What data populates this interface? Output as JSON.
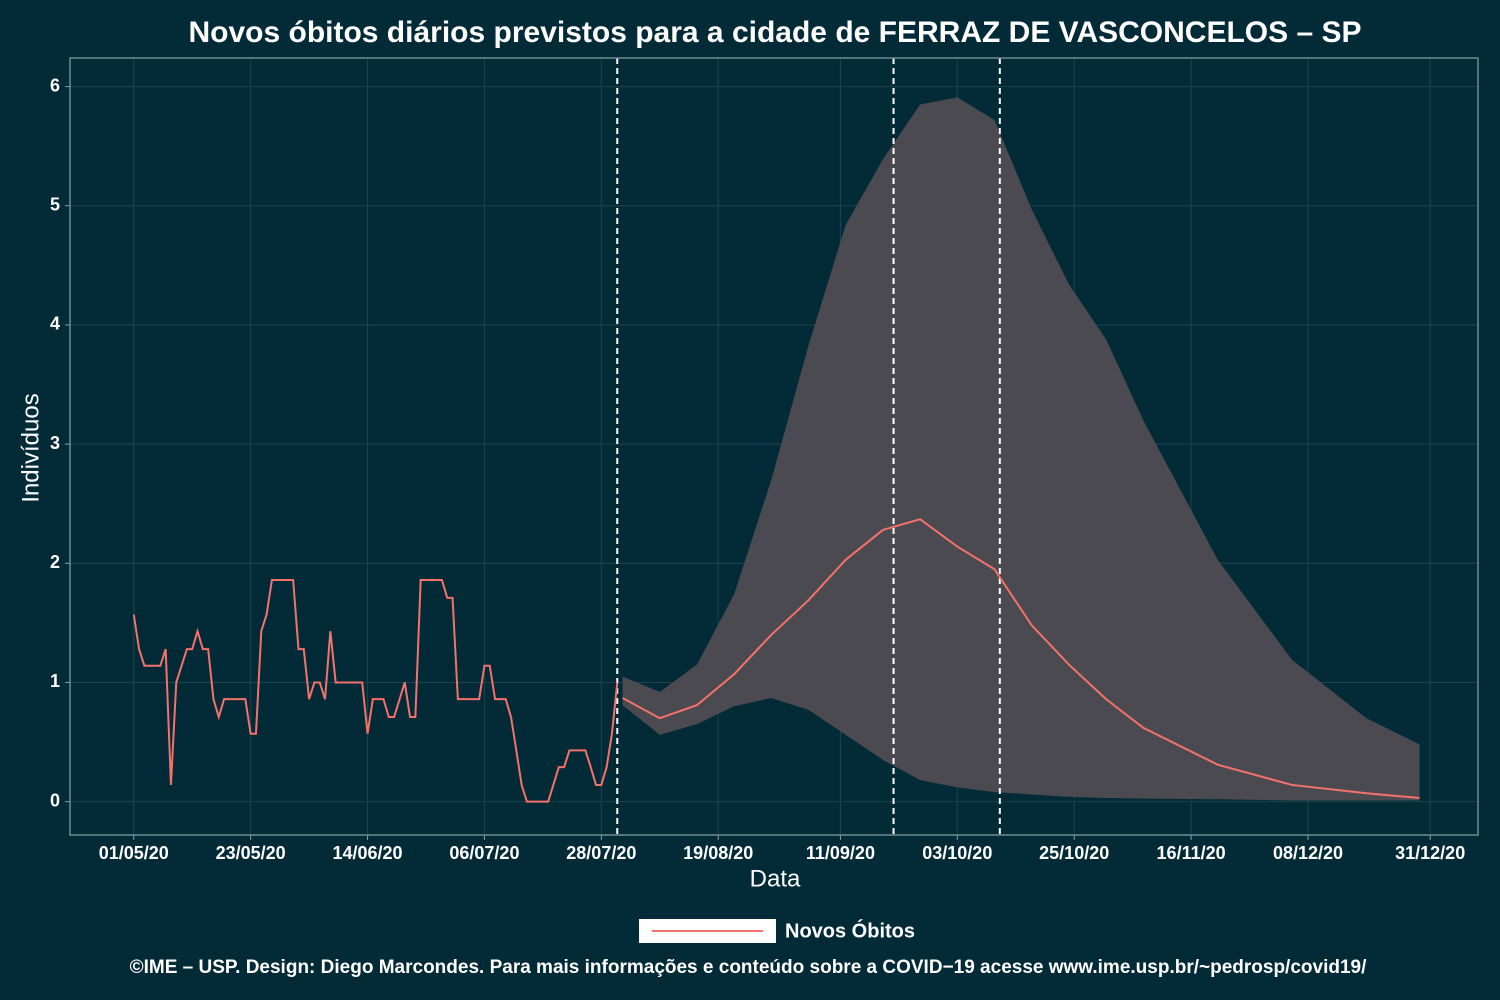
{
  "chart_data": {
    "type": "line",
    "title": "Novos óbitos diários previstos para a cidade de FERRAZ DE VASCONCELOS – SP",
    "x_label": "Data",
    "y_label": "Indivíduos",
    "caption": "©IME – USP. Design: Diego Marcondes. Para mais informações e conteúdo sobre a COVID−19 acesse www.ime.usp.br/~pedrosp/covid19/",
    "xlim": [
      "2020-04-19",
      "2021-01-09"
    ],
    "ylim": [
      -0.28,
      6.24
    ],
    "xticks": [
      {
        "value": "2020-05-01",
        "label": "01/05/20"
      },
      {
        "value": "2020-05-23",
        "label": "23/05/20"
      },
      {
        "value": "2020-06-14",
        "label": "14/06/20"
      },
      {
        "value": "2020-07-06",
        "label": "06/07/20"
      },
      {
        "value": "2020-07-28",
        "label": "28/07/20"
      },
      {
        "value": "2020-08-19",
        "label": "19/08/20"
      },
      {
        "value": "2020-09-11",
        "label": "11/09/20"
      },
      {
        "value": "2020-10-03",
        "label": "03/10/20"
      },
      {
        "value": "2020-10-25",
        "label": "25/10/20"
      },
      {
        "value": "2020-11-16",
        "label": "16/11/20"
      },
      {
        "value": "2020-12-08",
        "label": "08/12/20"
      },
      {
        "value": "2020-12-31",
        "label": "31/12/20"
      }
    ],
    "yticks": [
      0,
      1,
      2,
      3,
      4,
      5,
      6
    ],
    "grid": true,
    "vlines": [
      "2020-07-31",
      "2020-09-21",
      "2020-10-11"
    ],
    "series": [
      {
        "name": "Novos Óbitos",
        "color": "#f4726b",
        "x": [
          "2020-05-01",
          "2020-05-02",
          "2020-05-03",
          "2020-05-06",
          "2020-05-07",
          "2020-05-08",
          "2020-05-09",
          "2020-05-11",
          "2020-05-12",
          "2020-05-13",
          "2020-05-14",
          "2020-05-15",
          "2020-05-16",
          "2020-05-17",
          "2020-05-18",
          "2020-05-22",
          "2020-05-23",
          "2020-05-24",
          "2020-05-25",
          "2020-05-26",
          "2020-05-27",
          "2020-05-31",
          "2020-06-01",
          "2020-06-02",
          "2020-06-03",
          "2020-06-04",
          "2020-06-05",
          "2020-06-06",
          "2020-06-07",
          "2020-06-08",
          "2020-06-13",
          "2020-06-14",
          "2020-06-15",
          "2020-06-17",
          "2020-06-18",
          "2020-06-19",
          "2020-06-21",
          "2020-06-22",
          "2020-06-23",
          "2020-06-24",
          "2020-06-28",
          "2020-06-29",
          "2020-06-30",
          "2020-07-01",
          "2020-07-05",
          "2020-07-06",
          "2020-07-07",
          "2020-07-08",
          "2020-07-10",
          "2020-07-11",
          "2020-07-12",
          "2020-07-13",
          "2020-07-14",
          "2020-07-18",
          "2020-07-20",
          "2020-07-21",
          "2020-07-22",
          "2020-07-25",
          "2020-07-26",
          "2020-07-27",
          "2020-07-28",
          "2020-07-29",
          "2020-07-30",
          "2020-07-31",
          null,
          "2020-08-01",
          "2020-08-08",
          "2020-08-15",
          "2020-08-22",
          "2020-08-29",
          "2020-09-05",
          "2020-09-12",
          "2020-09-19",
          "2020-09-26",
          "2020-10-03",
          "2020-10-10",
          "2020-10-17",
          "2020-10-24",
          "2020-10-31",
          "2020-11-07",
          "2020-11-21",
          "2020-12-05",
          "2020-12-19",
          "2020-12-29"
        ],
        "values": [
          1.57,
          1.28,
          1.14,
          1.14,
          1.28,
          0.14,
          1.0,
          1.28,
          1.28,
          1.43,
          1.28,
          1.28,
          0.86,
          0.71,
          0.86,
          0.86,
          0.57,
          0.57,
          1.43,
          1.57,
          1.86,
          1.86,
          1.28,
          1.28,
          0.86,
          1.0,
          1.0,
          0.86,
          1.43,
          1.0,
          1.0,
          0.57,
          0.86,
          0.86,
          0.71,
          0.71,
          1.0,
          0.71,
          0.71,
          1.86,
          1.86,
          1.71,
          1.71,
          0.86,
          0.86,
          1.14,
          1.14,
          0.86,
          0.86,
          0.71,
          0.43,
          0.14,
          0,
          0,
          0.29,
          0.29,
          0.43,
          0.43,
          0.29,
          0.14,
          0.14,
          0.29,
          0.57,
          1.0,
          null,
          0.87,
          0.7,
          0.81,
          1.07,
          1.4,
          1.69,
          2.03,
          2.28,
          2.37,
          2.14,
          1.95,
          1.48,
          1.15,
          0.86,
          0.62,
          0.31,
          0.14,
          0.07,
          0.03
        ]
      }
    ],
    "band": {
      "color": "#4a4a50",
      "x": [
        "2020-08-01",
        "2020-08-08",
        "2020-08-15",
        "2020-08-22",
        "2020-08-29",
        "2020-09-05",
        "2020-09-12",
        "2020-09-19",
        "2020-09-26",
        "2020-10-03",
        "2020-10-10",
        "2020-10-17",
        "2020-10-24",
        "2020-10-31",
        "2020-11-07",
        "2020-11-21",
        "2020-12-05",
        "2020-12-19",
        "2020-12-29"
      ],
      "lower": [
        0.81,
        0.56,
        0.65,
        0.8,
        0.87,
        0.77,
        0.56,
        0.35,
        0.18,
        0.12,
        0.08,
        0.06,
        0.04,
        0.03,
        0.025,
        0.02,
        0.01,
        0.01,
        0.01
      ],
      "upper": [
        1.05,
        0.92,
        1.15,
        1.74,
        2.7,
        3.83,
        4.84,
        5.39,
        5.85,
        5.91,
        5.72,
        4.97,
        4.34,
        3.88,
        3.2,
        2.03,
        1.19,
        0.7,
        0.48
      ]
    }
  }
}
